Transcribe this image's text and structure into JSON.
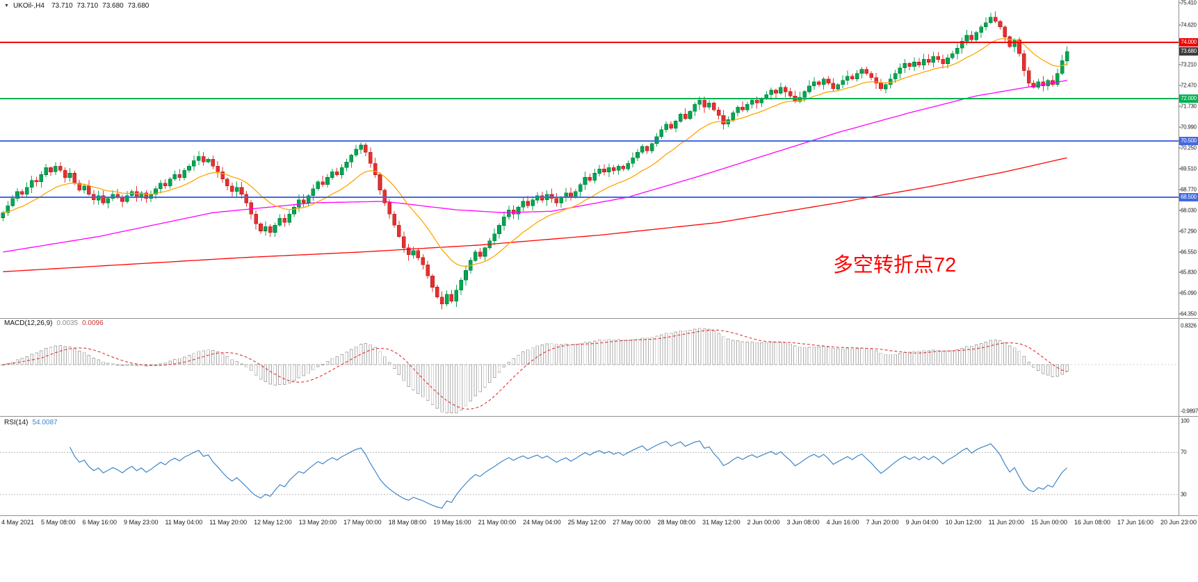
{
  "header": {
    "symbol": "UKOil-,H4",
    "open": "73.710",
    "high": "73.710",
    "low": "73.680",
    "close": "73.680"
  },
  "annotation": {
    "text": "多空转折点72",
    "color": "#ff0000"
  },
  "main_chart": {
    "axis_ticks": [
      75.41,
      74.62,
      73.21,
      72.47,
      71.73,
      70.99,
      70.25,
      69.51,
      68.77,
      68.03,
      67.29,
      66.55,
      65.83,
      65.09,
      64.35
    ],
    "levels": [
      {
        "value": 74.0,
        "label": "74.000",
        "color": "#ee0000"
      },
      {
        "value": 72.0,
        "label": "72.000",
        "color": "#00b050"
      },
      {
        "value": 70.5,
        "label": "70.500",
        "color": "#4169e1"
      },
      {
        "value": 68.5,
        "label": "68.500",
        "color": "#4169e1"
      }
    ],
    "current_price": {
      "value": 73.68,
      "label": "73.680",
      "bg": "#3c3c3c"
    }
  },
  "macd": {
    "label": "MACD(12,26,9)",
    "value_main": "0.0035",
    "value_signal": "0.0096",
    "fast": 12,
    "slow": 26,
    "signal": 9,
    "axis_ticks": [
      {
        "label": "0.8326",
        "value": 0.8326
      },
      {
        "label": "-0.9897",
        "value": -0.9897
      }
    ]
  },
  "rsi": {
    "label": "RSI(14)",
    "value": "54.0087",
    "period": 14,
    "levels": [
      70,
      30
    ],
    "axis_ticks": [
      100,
      70,
      30
    ]
  },
  "time_axis": {
    "labels": [
      "4 May 2021",
      "5 May 08:00",
      "6 May 16:00",
      "9 May 23:00",
      "11 May 04:00",
      "11 May 20:00",
      "12 May 12:00",
      "13 May 20:00",
      "17 May 00:00",
      "18 May 08:00",
      "19 May 16:00",
      "21 May 00:00",
      "24 May 04:00",
      "25 May 12:00",
      "27 May 00:00",
      "28 May 08:00",
      "31 May 12:00",
      "2 Jun 00:00",
      "3 Jun 08:00",
      "4 Jun 16:00",
      "7 Jun 20:00",
      "9 Jun 04:00",
      "10 Jun 12:00",
      "11 Jun 20:00",
      "15 Jun 00:00",
      "16 Jun 08:00",
      "17 Jun 16:00",
      "20 Jun 23:00"
    ]
  },
  "chart_data": {
    "type": "candlestick",
    "title": "UKOil- H4",
    "symbol": "UKOil-",
    "timeframe": "H4",
    "ylim": [
      64.35,
      75.41
    ],
    "hlines": [
      74.0,
      72.0,
      70.5,
      68.5
    ],
    "closes": [
      67.95,
      68.2,
      68.45,
      68.7,
      68.6,
      68.85,
      69.1,
      69.05,
      69.3,
      69.55,
      69.4,
      69.6,
      69.45,
      69.2,
      69.35,
      69.0,
      68.75,
      68.9,
      68.6,
      68.4,
      68.55,
      68.3,
      68.45,
      68.6,
      68.5,
      68.35,
      68.55,
      68.7,
      68.5,
      68.65,
      68.45,
      68.6,
      68.8,
      69.0,
      68.9,
      69.15,
      69.3,
      69.2,
      69.45,
      69.6,
      69.8,
      69.95,
      69.75,
      69.85,
      69.6,
      69.4,
      69.15,
      68.9,
      68.7,
      68.85,
      68.6,
      68.3,
      67.9,
      67.55,
      67.3,
      67.45,
      67.25,
      67.5,
      67.75,
      67.6,
      67.9,
      68.15,
      68.4,
      68.3,
      68.55,
      68.8,
      69.05,
      68.95,
      69.2,
      69.4,
      69.3,
      69.55,
      69.75,
      70.0,
      70.2,
      70.35,
      70.1,
      69.7,
      69.3,
      68.75,
      68.3,
      67.9,
      67.5,
      67.1,
      66.7,
      66.45,
      66.6,
      66.35,
      66.1,
      65.7,
      65.3,
      64.95,
      64.7,
      65.05,
      64.8,
      65.2,
      65.55,
      65.9,
      66.25,
      66.55,
      66.4,
      66.7,
      66.95,
      67.2,
      67.5,
      67.8,
      68.05,
      67.9,
      68.15,
      68.35,
      68.2,
      68.4,
      68.55,
      68.4,
      68.6,
      68.45,
      68.3,
      68.5,
      68.65,
      68.5,
      68.7,
      68.95,
      69.2,
      69.1,
      69.35,
      69.5,
      69.4,
      69.55,
      69.45,
      69.6,
      69.5,
      69.7,
      69.9,
      70.1,
      70.3,
      70.15,
      70.4,
      70.65,
      70.9,
      71.1,
      70.95,
      71.2,
      71.45,
      71.3,
      71.55,
      71.8,
      71.95,
      71.7,
      71.85,
      71.6,
      71.4,
      71.1,
      71.25,
      71.5,
      71.7,
      71.6,
      71.8,
      71.95,
      71.85,
      72.0,
      72.15,
      72.3,
      72.2,
      72.4,
      72.25,
      72.1,
      71.9,
      72.05,
      72.25,
      72.45,
      72.6,
      72.5,
      72.7,
      72.55,
      72.35,
      72.5,
      72.65,
      72.8,
      72.7,
      72.9,
      73.05,
      72.9,
      72.75,
      72.55,
      72.35,
      72.5,
      72.7,
      72.9,
      73.1,
      73.25,
      73.15,
      73.3,
      73.2,
      73.4,
      73.3,
      73.5,
      73.4,
      73.25,
      73.45,
      73.6,
      73.8,
      74.05,
      74.25,
      74.1,
      74.35,
      74.55,
      74.7,
      74.9,
      74.75,
      74.55,
      74.2,
      73.85,
      74.1,
      73.6,
      73.0,
      72.55,
      72.4,
      72.6,
      72.45,
      72.65,
      72.5,
      72.9,
      73.35,
      73.68
    ],
    "ma_fast": {
      "period": 16,
      "color": "#ffa500"
    },
    "ma_medium": {
      "color": "#ff00ff",
      "points": [
        [
          0,
          66.55
        ],
        [
          20,
          67.1
        ],
        [
          44,
          67.95
        ],
        [
          65,
          68.3
        ],
        [
          80,
          68.35
        ],
        [
          95,
          68.05
        ],
        [
          105,
          67.95
        ],
        [
          115,
          68.0
        ],
        [
          131,
          68.5
        ],
        [
          146,
          69.25
        ],
        [
          160,
          70.0
        ],
        [
          175,
          70.8
        ],
        [
          190,
          71.5
        ],
        [
          204,
          72.1
        ],
        [
          223,
          72.65
        ]
      ]
    },
    "ma_slow": {
      "color": "#ff0000",
      "points": [
        [
          0,
          65.85
        ],
        [
          25,
          66.1
        ],
        [
          50,
          66.35
        ],
        [
          75,
          66.55
        ],
        [
          100,
          66.8
        ],
        [
          125,
          67.15
        ],
        [
          150,
          67.6
        ],
        [
          175,
          68.3
        ],
        [
          195,
          68.9
        ],
        [
          210,
          69.4
        ],
        [
          223,
          69.9
        ]
      ]
    }
  },
  "colors": {
    "up": "#00a651",
    "up_border": "#00793c",
    "down": "#e53030",
    "down_border": "#b31e1e",
    "macd_hist": "#ababab",
    "macd_signal": "#e03030",
    "rsi": "#3d85c8",
    "separator": "#8f8f8f",
    "axis_text": "#1a1a1a"
  }
}
